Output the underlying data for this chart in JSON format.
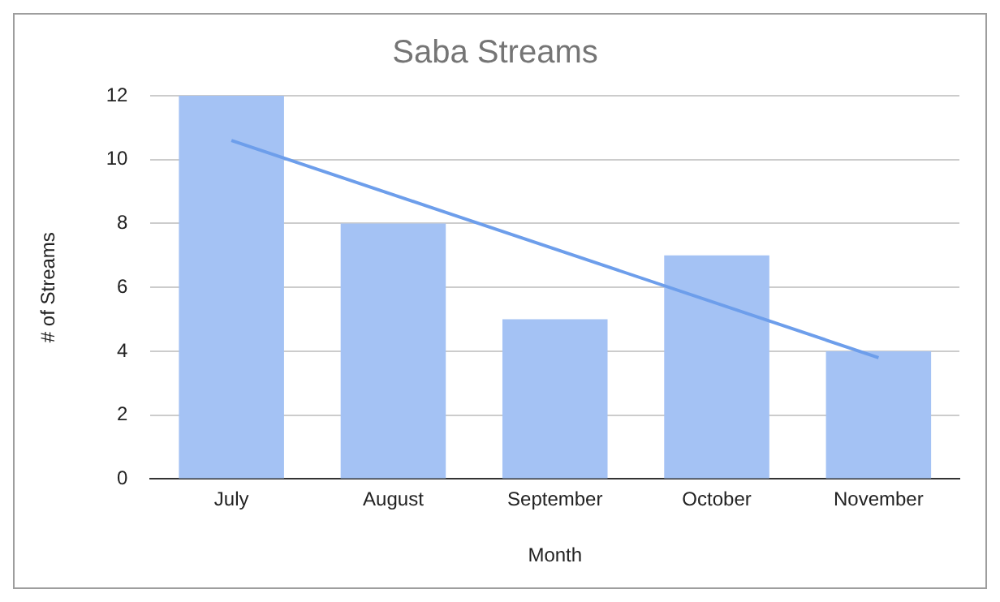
{
  "chart_data": {
    "type": "bar",
    "title": "Saba Streams",
    "xlabel": "Month",
    "ylabel": "# of Streams",
    "categories": [
      "July",
      "August",
      "September",
      "October",
      "November"
    ],
    "series": [
      {
        "color": "#a4c2f4",
        "values": [
          12,
          8,
          5,
          7,
          4
        ]
      },
      {
        "type": "line",
        "color": "#6d9eeb",
        "x": [
          "July",
          "November"
        ],
        "values": [
          10.6,
          3.8
        ]
      }
    ],
    "ylim": [
      0,
      12
    ],
    "yticks": [
      0,
      2,
      4,
      6,
      8,
      10,
      12
    ],
    "grid": "y",
    "legend": false,
    "marker": "none"
  }
}
